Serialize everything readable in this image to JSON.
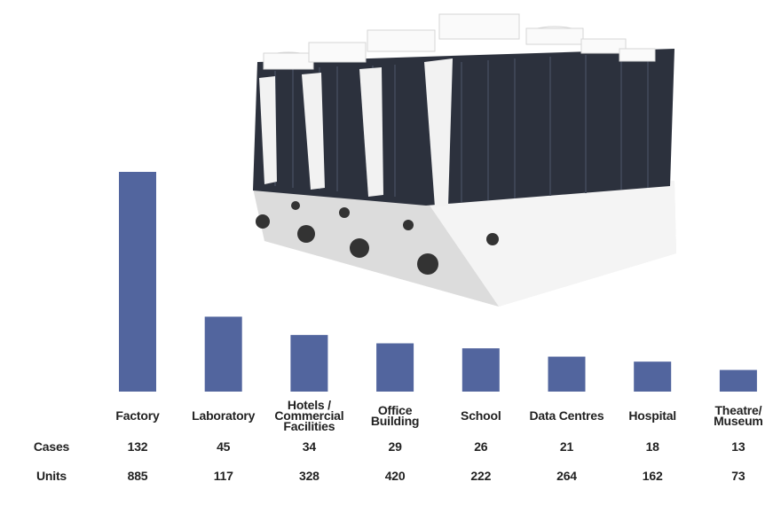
{
  "chart_data": {
    "type": "bar",
    "categories": [
      "Factory",
      "Laboratory",
      "Hotels /\nCommercial\nFacilities",
      "Office\nBuilding",
      "School",
      "Data Centres",
      "Hospital",
      "Theatre/\nMuseum"
    ],
    "series": [
      {
        "name": "Cases",
        "color": "#52659e",
        "values": [
          132,
          45,
          34,
          29,
          26,
          21,
          18,
          13
        ]
      },
      {
        "name": "Units",
        "values": [
          885,
          117,
          328,
          420,
          222,
          264,
          162,
          73
        ]
      }
    ]
  }
}
